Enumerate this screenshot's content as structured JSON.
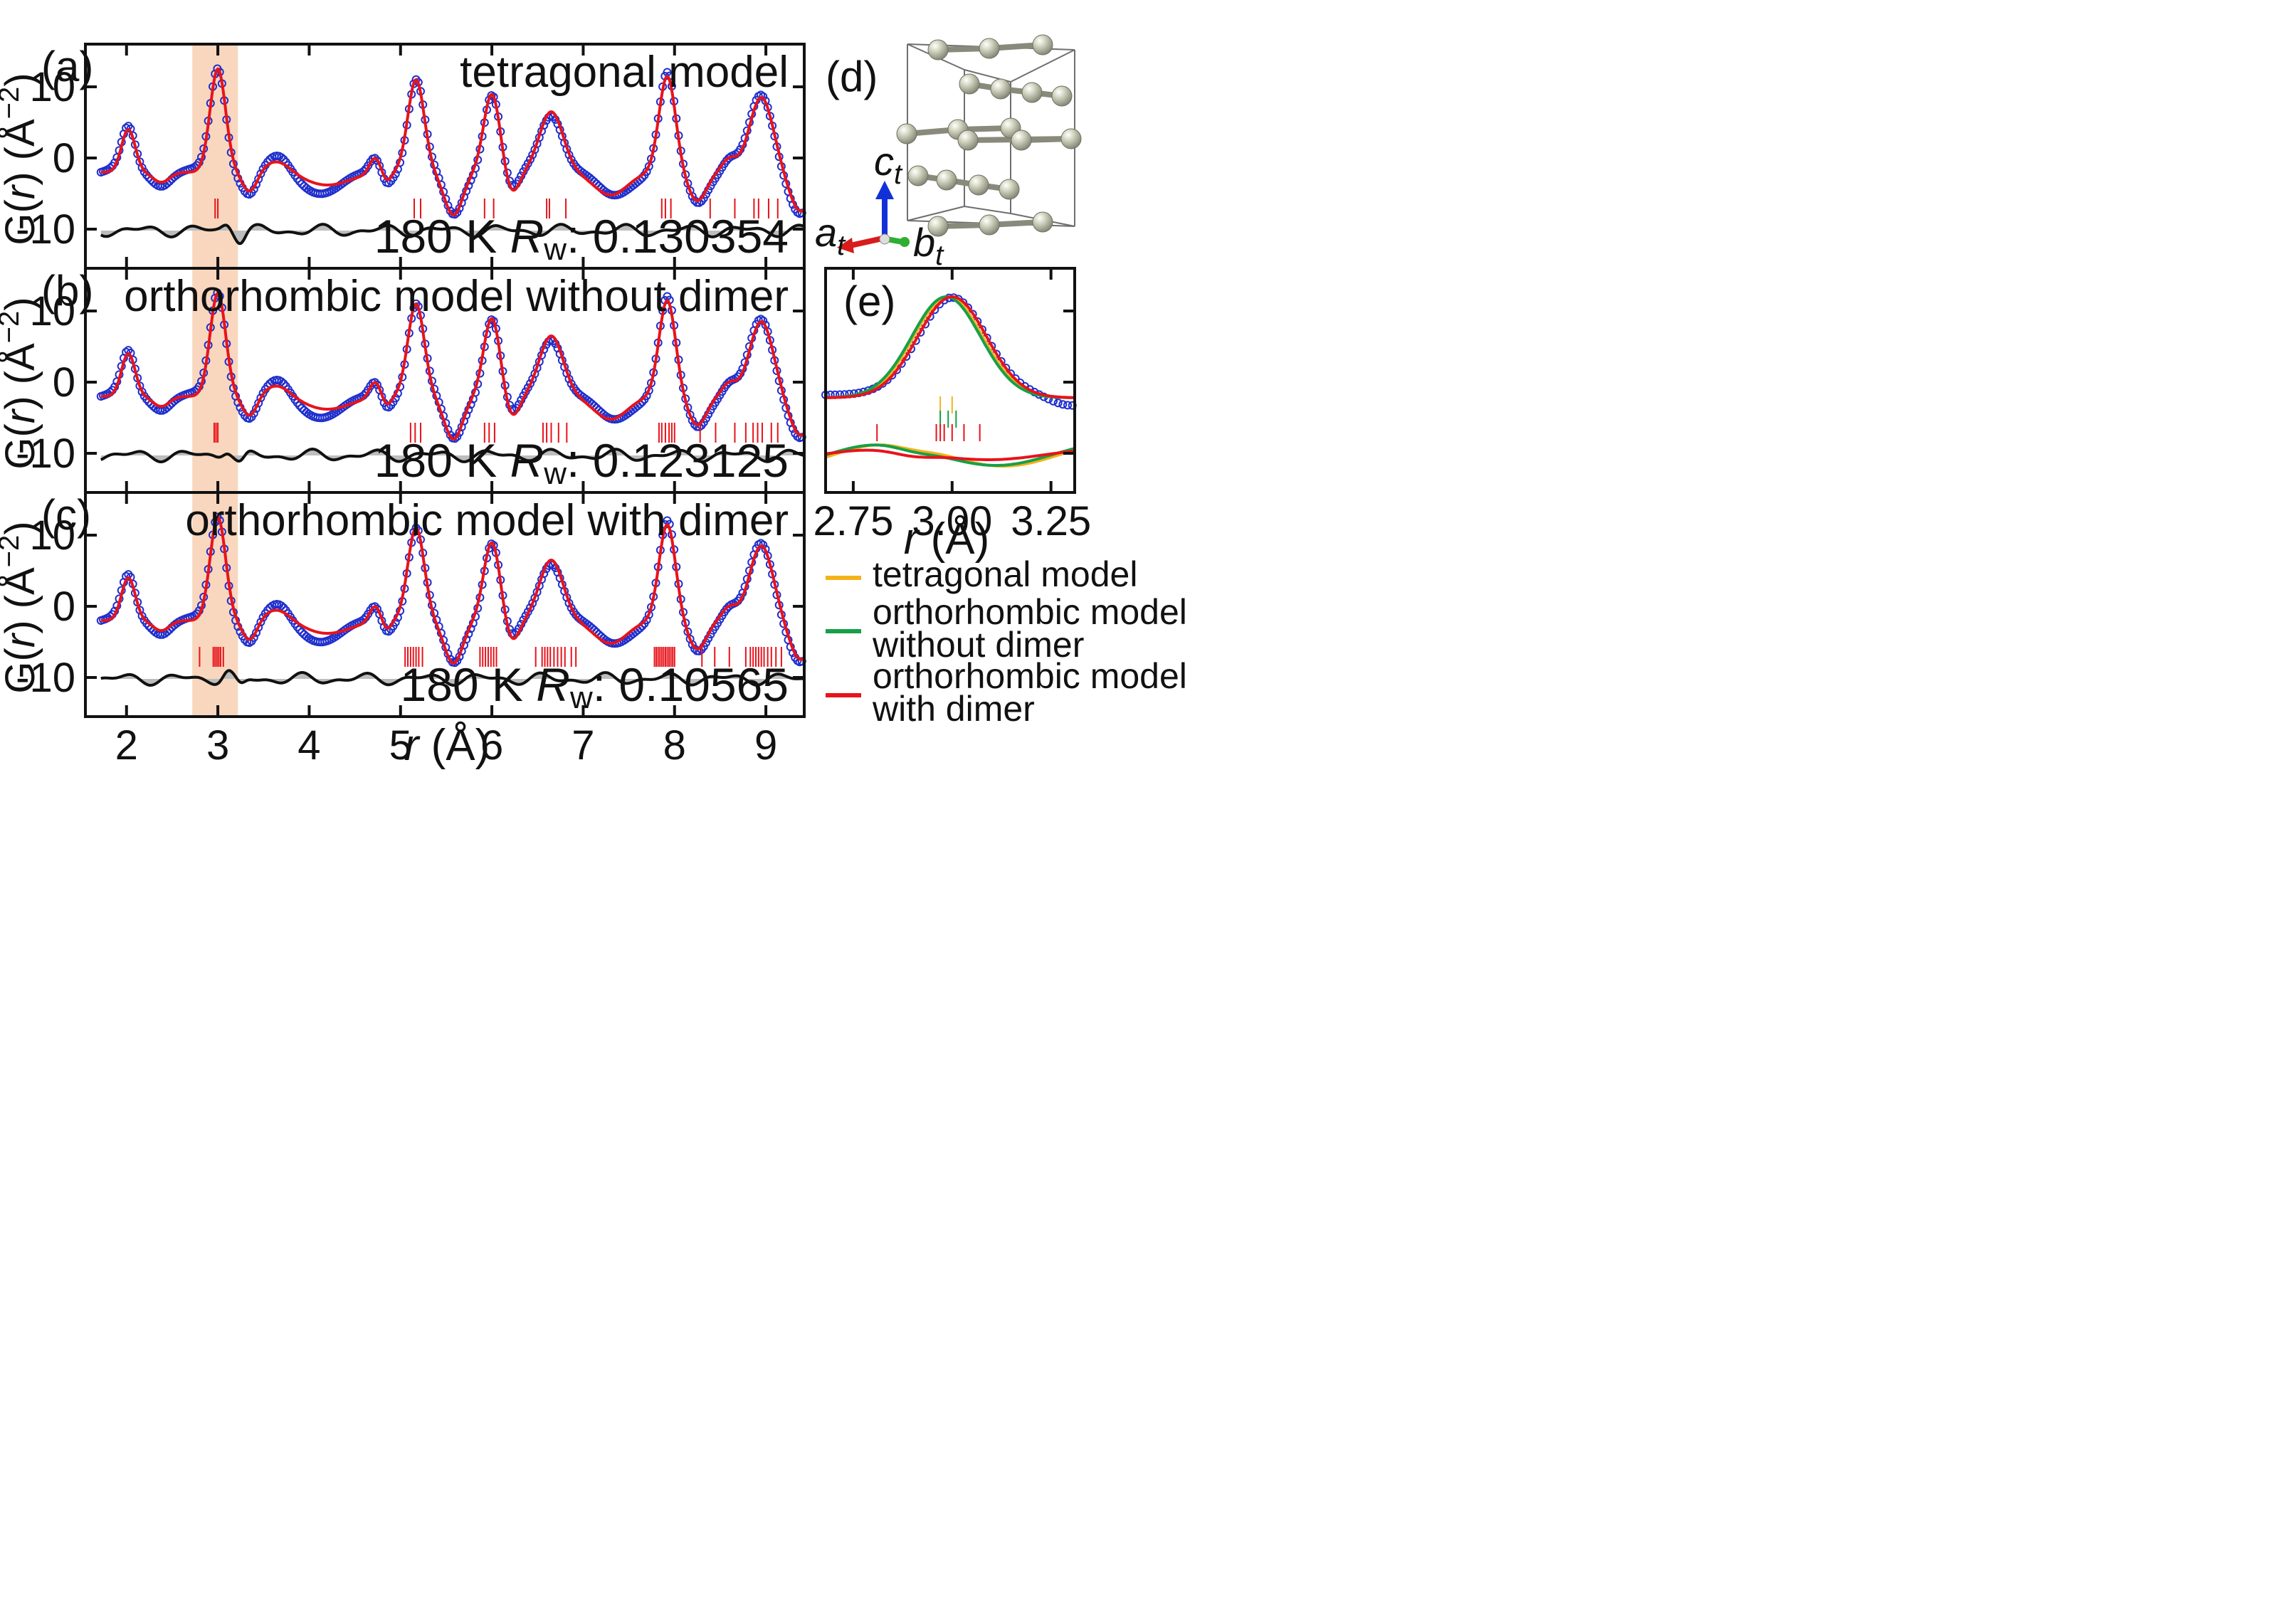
{
  "colors": {
    "data_points": "#1f2fcc",
    "fit_line": "#e8131b",
    "difference": "#111111",
    "diff_fill": "#bdbdbd",
    "highlight": "#f5caa8",
    "tetragonal": "#f4b21a",
    "ortho_no_dimer": "#16a047",
    "ortho_dimer": "#e8131b",
    "atom": "#c9cbb6",
    "axis_c": "#1230d8",
    "axis_a": "#d81c1c",
    "axis_b": "#2fae2f"
  },
  "shared": {
    "y_label_prefix": "G(",
    "y_label_r": "r",
    "y_label_suffix": ") (Å",
    "y_label_exp": "−2",
    "y_label_close": ")",
    "x_label_r": "r",
    "x_label_unit": " (Å)",
    "temperature": "180 K",
    "rw_symbol": "R",
    "rw_sub": "w",
    "rw_sep": ": ",
    "highlight_range": [
      2.72,
      3.22
    ]
  },
  "chart_data": [
    {
      "id": "a",
      "type": "line",
      "panel_label": "(a)",
      "model": "tetragonal model",
      "rw": "0.130354",
      "x_range": [
        1.55,
        9.42
      ],
      "ylim": [
        -15.5,
        16
      ],
      "yticks": [
        10,
        0,
        -10
      ],
      "ytick_labels": [
        "10",
        "0",
        "-10"
      ],
      "xticks": [
        2,
        3,
        4,
        5,
        6,
        7,
        8,
        9
      ],
      "xtick_labels": [],
      "diff_offset": -10.2,
      "tick_y": -7.1,
      "bond_ticks": [
        2.97,
        3.0,
        5.15,
        5.22,
        5.92,
        6.02,
        6.6,
        6.63,
        6.81,
        7.86,
        7.9,
        7.96,
        8.39,
        8.66,
        8.87,
        8.92,
        9.03,
        9.13
      ]
    },
    {
      "id": "b",
      "type": "line",
      "panel_label": "(b)",
      "model": "orthorhombic model without dimer",
      "rw": "0.123125",
      "x_range": [
        1.55,
        9.42
      ],
      "ylim": [
        -15.5,
        16
      ],
      "yticks": [
        10,
        0,
        -10
      ],
      "ytick_labels": [
        "10",
        "0",
        "-10"
      ],
      "xticks": [
        2,
        3,
        4,
        5,
        6,
        7,
        8,
        9
      ],
      "xtick_labels": [],
      "diff_offset": -10.3,
      "tick_y": -7.1,
      "bond_ticks": [
        2.96,
        2.98,
        3.0,
        5.11,
        5.16,
        5.22,
        5.92,
        5.97,
        6.03,
        6.56,
        6.6,
        6.65,
        6.73,
        6.82,
        7.83,
        7.86,
        7.9,
        7.94,
        7.97,
        8.0,
        8.28,
        8.45,
        8.66,
        8.78,
        8.86,
        8.91,
        8.96,
        9.06,
        9.13
      ]
    },
    {
      "id": "c",
      "type": "line",
      "panel_label": "(c)",
      "model": "orthorhombic model with dimer",
      "rw": "0.10565",
      "x_range": [
        1.55,
        9.42
      ],
      "ylim": [
        -15.5,
        16
      ],
      "yticks": [
        10,
        0,
        -10
      ],
      "ytick_labels": [
        "10",
        "0",
        "-10"
      ],
      "xticks": [
        2,
        3,
        4,
        5,
        6,
        7,
        8,
        9
      ],
      "xtick_labels": [
        "2",
        "3",
        "4",
        "5",
        "6",
        "7",
        "8",
        "9"
      ],
      "diff_offset": -10.2,
      "tick_y": -7.1,
      "bond_ticks": [
        2.8,
        2.95,
        2.97,
        2.99,
        3.01,
        3.03,
        3.06,
        5.05,
        5.08,
        5.11,
        5.14,
        5.17,
        5.2,
        5.24,
        5.87,
        5.9,
        5.93,
        5.96,
        5.99,
        6.02,
        6.05,
        6.48,
        6.55,
        6.58,
        6.61,
        6.64,
        6.68,
        6.72,
        6.76,
        6.8,
        6.87,
        6.92,
        7.78,
        7.8,
        7.82,
        7.84,
        7.86,
        7.88,
        7.9,
        7.92,
        7.94,
        7.96,
        7.98,
        8.0,
        8.3,
        8.44,
        8.6,
        8.78,
        8.83,
        8.86,
        8.89,
        8.92,
        8.95,
        8.98,
        9.02,
        9.06,
        9.11,
        9.17
      ]
    },
    {
      "id": "e",
      "type": "line",
      "panel_label": "(e)",
      "x_range": [
        2.68,
        3.31
      ],
      "ylim": [
        -15.5,
        16
      ],
      "xticks": [
        2.75,
        3.0,
        3.25
      ],
      "xtick_labels": [
        "2.75",
        "3.00",
        "3.25"
      ],
      "yticks": [
        10,
        0,
        -10
      ],
      "series": [
        {
          "name": "tetragonal model",
          "color_key": "tetragonal",
          "ticks": [
            2.97,
            3.0
          ],
          "tick_y": -3.2
        },
        {
          "name": "orthorhombic model without dimer",
          "color_key": "ortho_no_dimer",
          "ticks": [
            2.97,
            2.99,
            3.01
          ],
          "tick_y": -5.2
        },
        {
          "name": "orthorhombic model with dimer",
          "color_key": "ortho_dimer",
          "ticks": [
            2.81,
            2.96,
            2.97,
            2.98,
            3.0,
            3.03,
            3.07
          ],
          "tick_y": -7.1
        }
      ]
    }
  ],
  "structure": {
    "label": "(d)",
    "axis_c_label": "c",
    "axis_c_sub": "t",
    "axis_a_label": "a",
    "axis_a_sub": "t",
    "axis_b_label": "b",
    "axis_b_sub": "t"
  },
  "legend": {
    "items": [
      {
        "color_key": "tetragonal",
        "lines": [
          "tetragonal model"
        ]
      },
      {
        "color_key": "ortho_no_dimer",
        "lines": [
          "orthorhombic model",
          "without dimer"
        ]
      },
      {
        "color_key": "ortho_dimer",
        "lines": [
          "orthorhombic model",
          "with dimer"
        ]
      }
    ]
  }
}
